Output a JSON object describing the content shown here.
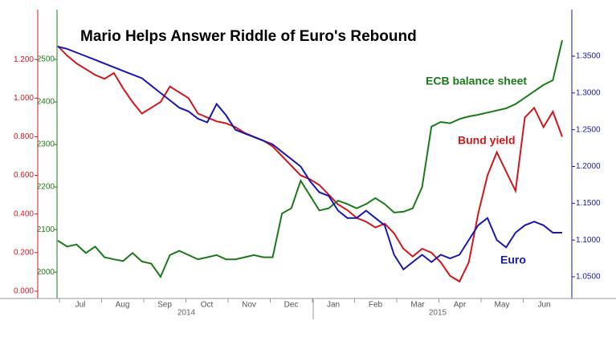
{
  "chart_data": {
    "type": "line",
    "title": "Mario Helps Answer Riddle of Euro's Rebound",
    "x_labels": [
      "Jul",
      "Aug",
      "Sep",
      "Oct",
      "Nov",
      "Dec",
      "Jan",
      "Feb",
      "Mar",
      "Apr",
      "May",
      "Jun"
    ],
    "year_labels": [
      "2014",
      "2015"
    ],
    "annotations": [
      "ECB balance sheet",
      "Bund yield",
      "Euro"
    ],
    "ylim": [
      -0.0375,
      1.425
    ],
    "yticks": [
      {
        "value": 0,
        "label": "0.000"
      },
      {
        "value": 0.2,
        "label": "0.200"
      },
      {
        "value": 0.4,
        "label": "0.400"
      },
      {
        "value": 0.6,
        "label": "0.600"
      },
      {
        "value": 0.8,
        "label": "0.800"
      },
      {
        "value": 1.0,
        "label": "1.000"
      },
      {
        "value": 1.2,
        "label": "1.200"
      }
    ],
    "y3lim": [
      1938,
      2602
    ],
    "y3ticks": [
      2000,
      2100,
      2200,
      2300,
      2400,
      2500
    ],
    "y2lim": [
      1.0205,
      1.4046
    ],
    "y2ticks": [
      {
        "value": 1.05,
        "label": "1.0500"
      },
      {
        "value": 1.1,
        "label": "1.1000"
      },
      {
        "value": 1.15,
        "label": "1.1500"
      },
      {
        "value": 1.2,
        "label": "1.2000"
      },
      {
        "value": 1.25,
        "label": "1.2500"
      },
      {
        "value": 1.3,
        "label": "1.3000"
      },
      {
        "value": 1.35,
        "label": "1.3500"
      }
    ],
    "series": [
      {
        "name": "Bund yield",
        "color": "#d0181c",
        "axis": "y",
        "values": [
          1.27,
          1.22,
          1.18,
          1.15,
          1.12,
          1.1,
          1.13,
          1.05,
          0.98,
          0.92,
          0.95,
          0.98,
          1.06,
          1.03,
          1.0,
          0.92,
          0.9,
          0.88,
          0.87,
          0.85,
          0.82,
          0.8,
          0.78,
          0.75,
          0.7,
          0.65,
          0.6,
          0.58,
          0.55,
          0.5,
          0.45,
          0.42,
          0.38,
          0.36,
          0.33,
          0.35,
          0.3,
          0.22,
          0.18,
          0.22,
          0.2,
          0.15,
          0.08,
          0.05,
          0.15,
          0.4,
          0.6,
          0.72,
          0.62,
          0.52,
          0.9,
          0.95,
          0.85,
          0.93,
          0.8
        ]
      },
      {
        "name": "ECB balance sheet",
        "color": "#1a7a1a",
        "axis": "y3",
        "values": [
          2074,
          2060,
          2065,
          2045,
          2060,
          2035,
          2030,
          2026,
          2045,
          2025,
          2020,
          1989,
          2040,
          2050,
          2040,
          2030,
          2035,
          2040,
          2030,
          2030,
          2035,
          2040,
          2035,
          2035,
          2138,
          2150,
          2215,
          2180,
          2145,
          2150,
          2168,
          2160,
          2150,
          2160,
          2174,
          2160,
          2140,
          2142,
          2150,
          2200,
          2342,
          2353,
          2350,
          2360,
          2366,
          2370,
          2375,
          2380,
          2385,
          2395,
          2410,
          2425,
          2440,
          2451,
          2545
        ]
      },
      {
        "name": "Euro",
        "color": "#1818b0",
        "axis": "y2",
        "values": [
          1.363,
          1.36,
          1.355,
          1.35,
          1.345,
          1.34,
          1.335,
          1.33,
          1.325,
          1.32,
          1.31,
          1.3,
          1.29,
          1.28,
          1.275,
          1.265,
          1.26,
          1.285,
          1.27,
          1.25,
          1.245,
          1.24,
          1.235,
          1.23,
          1.22,
          1.21,
          1.2,
          1.18,
          1.165,
          1.16,
          1.14,
          1.13,
          1.13,
          1.14,
          1.13,
          1.12,
          1.08,
          1.06,
          1.07,
          1.08,
          1.07,
          1.08,
          1.075,
          1.08,
          1.1,
          1.12,
          1.13,
          1.1,
          1.09,
          1.11,
          1.12,
          1.125,
          1.12,
          1.11,
          1.11
        ]
      }
    ]
  }
}
